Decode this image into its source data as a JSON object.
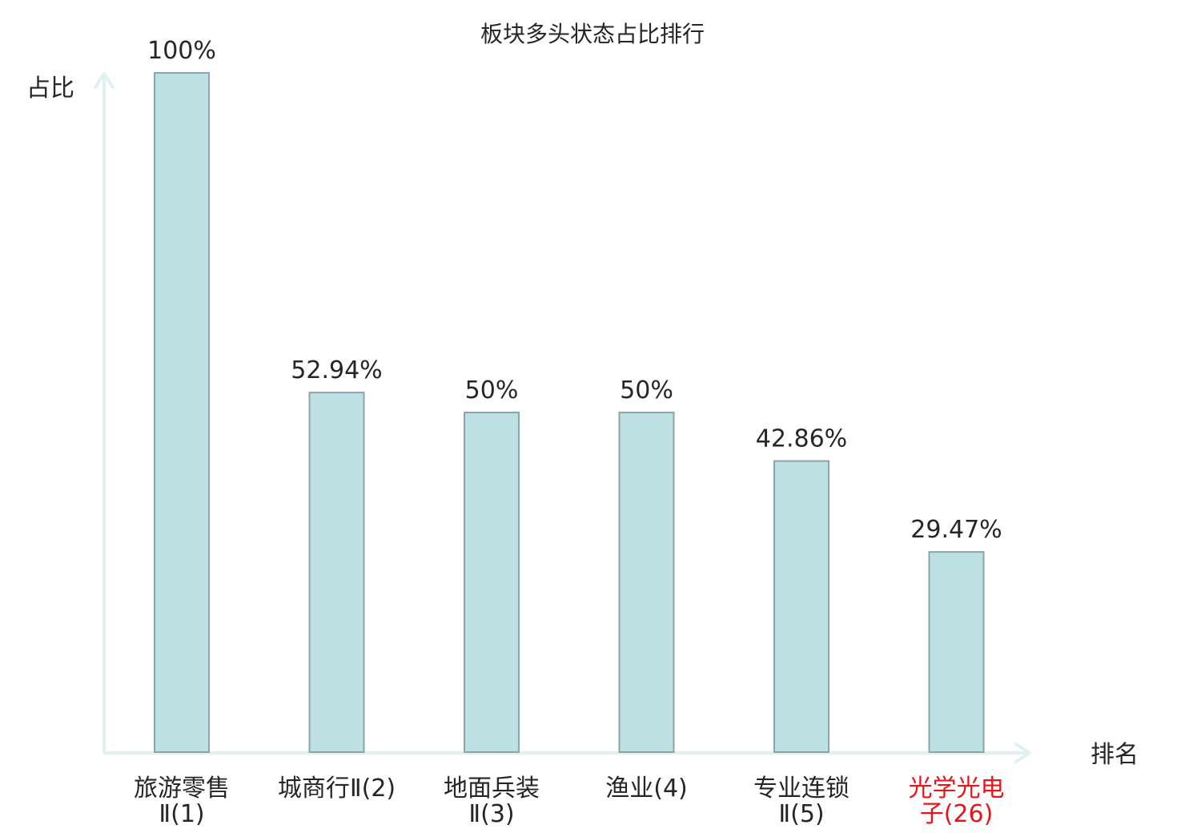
{
  "chart_data": {
    "type": "bar",
    "title": "板块多头状态占比排行",
    "ylabel": "占比",
    "xlabel": "排名",
    "ylim": [
      0,
      100
    ],
    "grid": false,
    "categories": [
      [
        "旅游零售",
        "Ⅱ(1)"
      ],
      [
        "城商行Ⅱ(2)"
      ],
      [
        "地面兵装",
        "Ⅱ(3)"
      ],
      [
        "渔业(4)"
      ],
      [
        "专业连锁",
        "Ⅱ(5)"
      ],
      [
        "光学光电",
        "子(26)"
      ]
    ],
    "values": [
      100,
      52.94,
      50,
      50,
      42.86,
      29.47
    ],
    "value_labels": [
      "100%",
      "52.94%",
      "50%",
      "50%",
      "42.86%",
      "29.47%"
    ],
    "highlight_index": 5
  },
  "colors": {
    "bar_fill": "#bde0e2",
    "bar_stroke": "#8aa6a8",
    "axis": "#e0f2f0",
    "text": "#262626",
    "highlight_text": "#e8141a"
  }
}
